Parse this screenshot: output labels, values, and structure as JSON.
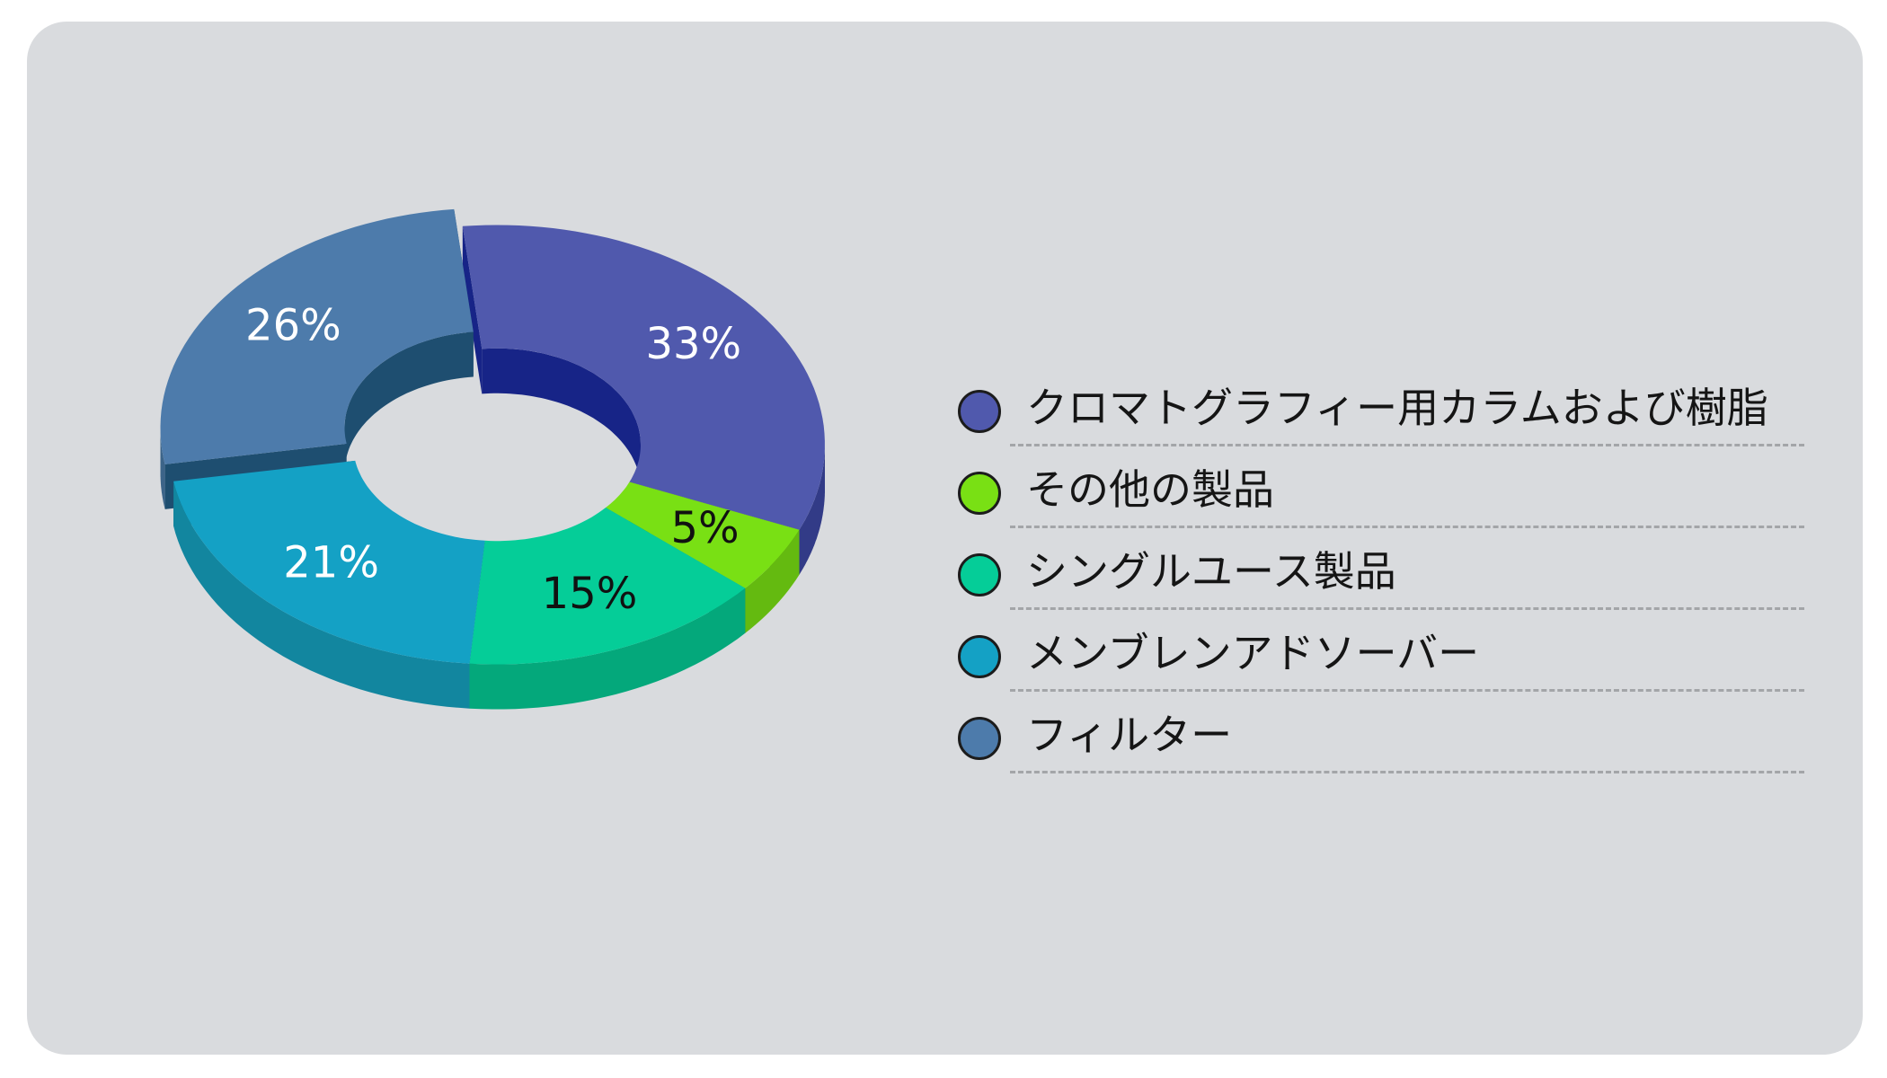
{
  "chart_data": {
    "type": "pie",
    "variant": "3d-donut",
    "slices": [
      {
        "label": "クロマトグラフィー用カラムおよび樹脂",
        "value": 33,
        "value_label": "33%",
        "color": "#5059ad",
        "side_color": "#323b87",
        "inner_color": "#172487",
        "label_color": "#ffffff",
        "exploded": false
      },
      {
        "label": "その他の製品",
        "value": 5,
        "value_label": "5%",
        "color": "#79e014",
        "side_color": "#64ba10",
        "inner_color": "#3f6b0c",
        "label_color": "#111111",
        "exploded": false
      },
      {
        "label": "シングルユース製品",
        "value": 15,
        "value_label": "15%",
        "color": "#05cd98",
        "side_color": "#04a87b",
        "inner_color": "#037a5a",
        "label_color": "#111111",
        "exploded": false
      },
      {
        "label": "メンブレンアドソーバー",
        "value": 21,
        "value_label": "21%",
        "color": "#14a1c5",
        "side_color": "#12869f",
        "inner_color": "#0e5f70",
        "label_color": "#ffffff",
        "exploded": false
      },
      {
        "label": "フィルター",
        "value": 26,
        "value_label": "26%",
        "color": "#4d7bab",
        "side_color": "#3c6489",
        "inner_color": "#1e4e70",
        "label_color": "#ffffff",
        "exploded": true
      }
    ],
    "legend_position": "right",
    "background": "#d9dbde"
  }
}
